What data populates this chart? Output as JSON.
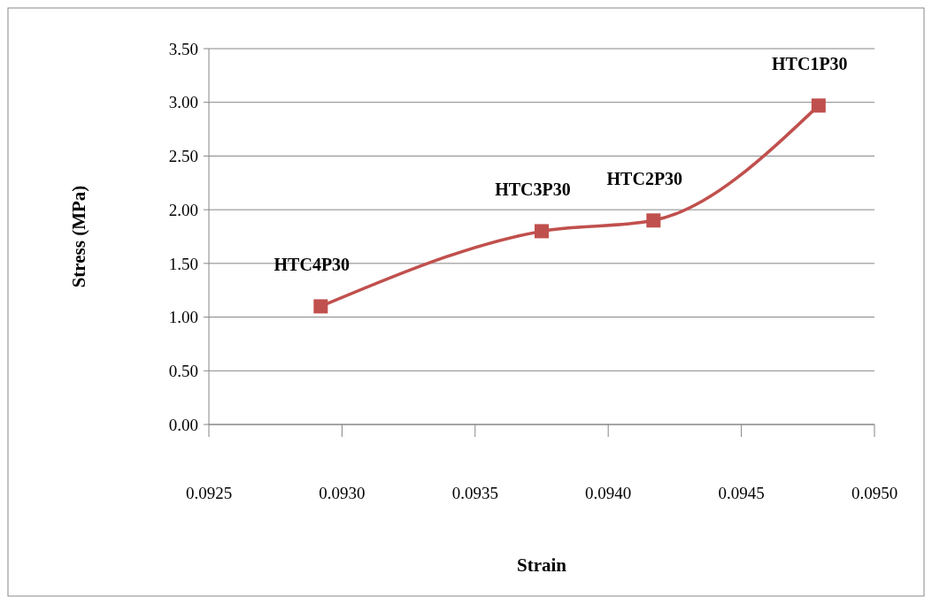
{
  "chart_data": {
    "type": "line",
    "xlabel": "Strain",
    "ylabel": "Stress (MPa)",
    "x": [
      0.09292,
      0.09375,
      0.09417,
      0.09479
    ],
    "series": [
      {
        "color": "#c0504d",
        "values": [
          1.1,
          1.8,
          1.9,
          2.97
        ]
      }
    ],
    "xlim": [
      0.0925,
      0.095
    ],
    "xticks": [
      {
        "value": 0.0925,
        "label": "0.0925"
      },
      {
        "value": 0.093,
        "label": "0.0930"
      },
      {
        "value": 0.0935,
        "label": "0.0935"
      },
      {
        "value": 0.094,
        "label": "0.0940"
      },
      {
        "value": 0.0945,
        "label": "0.0945"
      },
      {
        "value": 0.095,
        "label": "0.0950"
      }
    ],
    "ylim": [
      0,
      3.5
    ],
    "yticks": [
      {
        "value": 0,
        "label": "0.00"
      },
      {
        "value": 0.5,
        "label": "0.50"
      },
      {
        "value": 1,
        "label": "1.00"
      },
      {
        "value": 1.5,
        "label": "1.50"
      },
      {
        "value": 2,
        "label": "2.00"
      },
      {
        "value": 2.5,
        "label": "2.50"
      },
      {
        "value": 3,
        "label": "3.00"
      },
      {
        "value": 3.5,
        "label": "3.50"
      }
    ],
    "grid": "y",
    "marker": "square",
    "line_style": "solid",
    "annotations": [
      {
        "text": "HTC4P30",
        "x": 0.09292,
        "y": 1.1
      },
      {
        "text": "HTC3P30",
        "x": 0.09375,
        "y": 1.8
      },
      {
        "text": "HTC2P30",
        "x": 0.09417,
        "y": 1.9
      },
      {
        "text": "HTC1P30",
        "x": 0.09479,
        "y": 2.97
      }
    ]
  }
}
